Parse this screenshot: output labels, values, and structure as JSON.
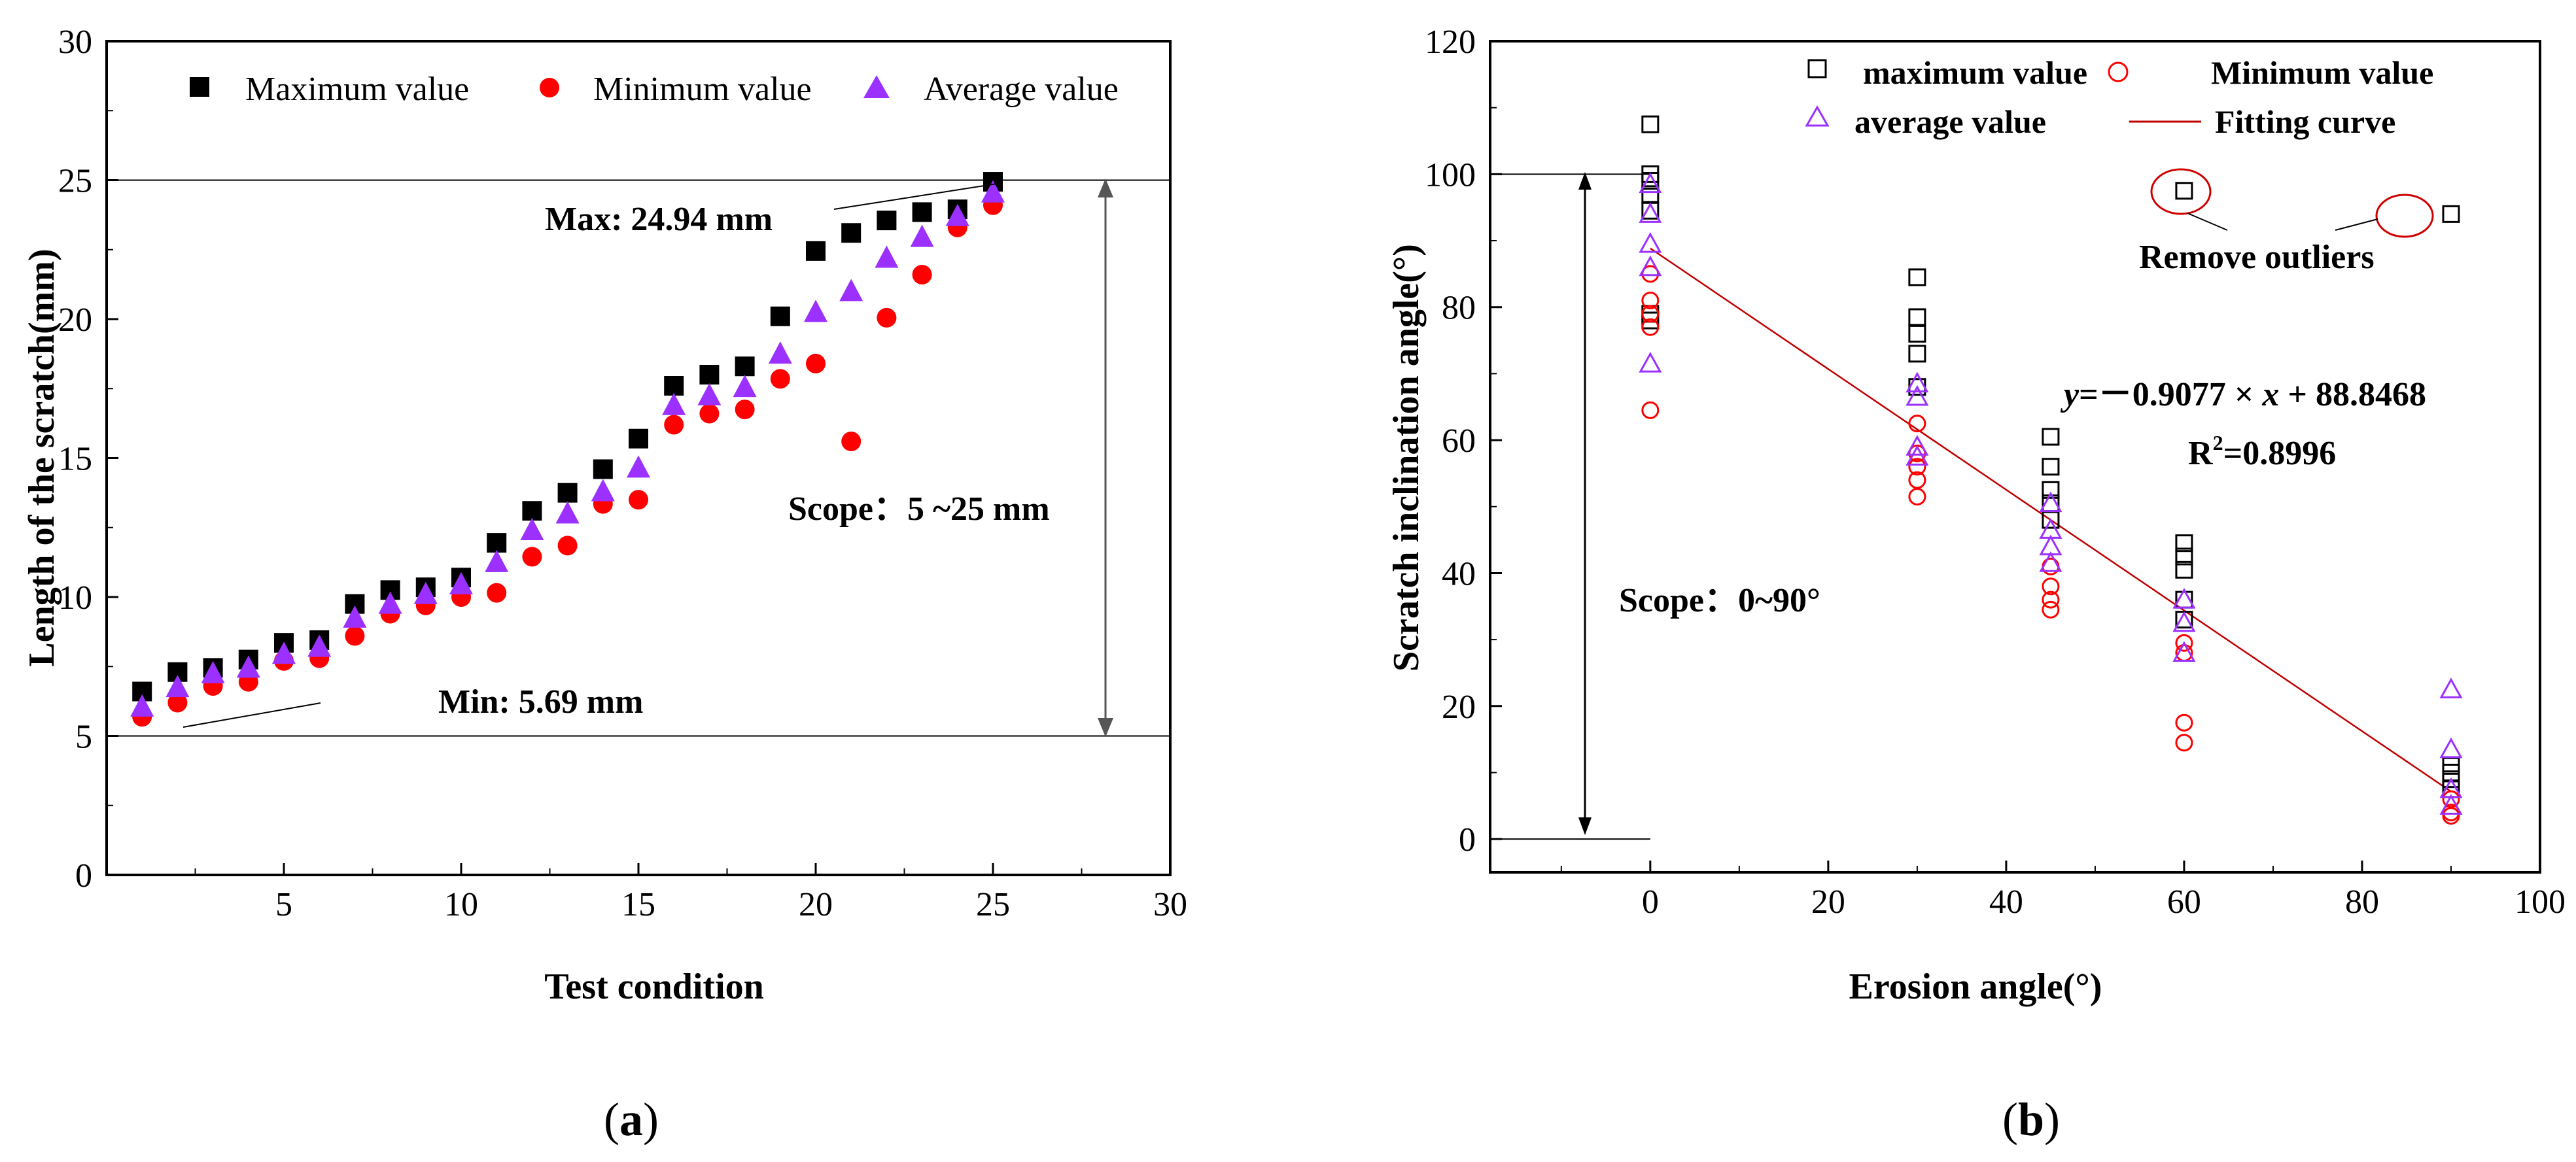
{
  "chart_data": [
    {
      "id": "a",
      "type": "scatter",
      "caption_letter": "a",
      "xlabel": "Test condition",
      "ylabel": "Length of the scratch(mm)",
      "xlim": [
        0,
        30
      ],
      "ylim": [
        0,
        30
      ],
      "xticks": [
        5,
        10,
        15,
        20,
        25,
        30
      ],
      "yticks": [
        0,
        5,
        10,
        15,
        20,
        25,
        30
      ],
      "x": [
        1,
        2,
        3,
        4,
        5,
        6,
        7,
        8,
        9,
        10,
        11,
        12,
        13,
        14,
        15,
        16,
        17,
        18,
        19,
        20,
        21,
        22,
        23,
        24,
        25
      ],
      "series": [
        {
          "name": "Maximum value",
          "marker": "square",
          "color": "#000000",
          "values": [
            6.6,
            7.3,
            7.45,
            7.75,
            8.35,
            8.45,
            9.75,
            10.25,
            10.35,
            10.7,
            11.95,
            13.1,
            13.75,
            14.6,
            15.7,
            17.6,
            18.0,
            18.3,
            20.1,
            22.45,
            23.1,
            23.55,
            23.85,
            23.95,
            24.94
          ]
        },
        {
          "name": "Minimum value",
          "marker": "circle",
          "color": "#ff0000",
          "values": [
            5.69,
            6.2,
            6.8,
            6.95,
            7.7,
            7.8,
            8.6,
            9.4,
            9.7,
            10.0,
            10.15,
            11.45,
            11.85,
            13.35,
            13.5,
            16.2,
            16.6,
            16.75,
            17.85,
            18.4,
            15.6,
            20.05,
            21.6,
            23.3,
            24.1
          ]
        },
        {
          "name": "Average value",
          "marker": "triangle",
          "color": "#9b30ff",
          "values": [
            6.05,
            6.75,
            7.25,
            7.45,
            7.95,
            8.2,
            9.25,
            9.75,
            10.1,
            10.45,
            11.25,
            12.4,
            13.0,
            13.8,
            14.65,
            16.9,
            17.25,
            17.55,
            18.75,
            20.25,
            21.0,
            22.2,
            22.95,
            23.7,
            24.55
          ]
        }
      ],
      "reference_lines": [
        25,
        5
      ],
      "annotations": {
        "max": "Max: 24.94 mm",
        "min": "Min: 5.69 mm",
        "scope": "Scope：5 ~25 mm"
      }
    },
    {
      "id": "b",
      "type": "scatter",
      "caption_letter": "b",
      "xlabel": "Erosion angle(°)",
      "ylabel": "Scratch inclination angle(°)",
      "xlim": [
        -18,
        100
      ],
      "ylim": [
        -5,
        120
      ],
      "xticks": [
        0,
        20,
        40,
        60,
        80,
        100
      ],
      "yticks": [
        0,
        20,
        40,
        60,
        80,
        100,
        120
      ],
      "series": [
        {
          "name": "maximum value",
          "marker": "open-square",
          "color": "#000000",
          "points": [
            [
              0,
              107.5
            ],
            [
              0,
              100
            ],
            [
              0,
              99
            ],
            [
              0,
              97
            ],
            [
              0,
              94.5
            ],
            [
              0,
              79
            ],
            [
              0,
              78
            ],
            [
              30,
              84.5
            ],
            [
              30,
              78.5
            ],
            [
              30,
              76
            ],
            [
              30,
              73
            ],
            [
              30,
              68
            ],
            [
              45,
              60.5
            ],
            [
              45,
              56
            ],
            [
              45,
              52.5
            ],
            [
              45,
              50.5
            ],
            [
              45,
              48
            ],
            [
              60,
              44.5
            ],
            [
              60,
              42.5
            ],
            [
              60,
              40.5
            ],
            [
              60,
              36
            ],
            [
              60,
              33
            ],
            [
              90,
              11
            ],
            [
              90,
              10
            ],
            [
              90,
              9
            ],
            [
              90,
              7.5
            ],
            [
              60,
              97.5
            ],
            [
              90,
              94
            ]
          ]
        },
        {
          "name": "Minimum value",
          "marker": "open-circle",
          "color": "#ff0000",
          "points": [
            [
              0,
              85
            ],
            [
              0,
              81
            ],
            [
              0,
              79
            ],
            [
              0,
              77
            ],
            [
              0,
              64.5
            ],
            [
              30,
              62.5
            ],
            [
              30,
              58
            ],
            [
              30,
              56
            ],
            [
              30,
              54
            ],
            [
              30,
              51.5
            ],
            [
              45,
              41
            ],
            [
              45,
              38
            ],
            [
              45,
              36
            ],
            [
              45,
              34.5
            ],
            [
              60,
              29.5
            ],
            [
              60,
              28
            ],
            [
              60,
              17.5
            ],
            [
              60,
              14.5
            ],
            [
              90,
              6
            ],
            [
              90,
              4
            ],
            [
              90,
              3.5
            ]
          ]
        },
        {
          "name": "average value",
          "marker": "open-triangle",
          "color": "#9b30ff",
          "points": [
            [
              0,
              98.5
            ],
            [
              0,
              94
            ],
            [
              0,
              89.5
            ],
            [
              0,
              86
            ],
            [
              0,
              71.5
            ],
            [
              30,
              68.5
            ],
            [
              30,
              66.5
            ],
            [
              30,
              59
            ],
            [
              30,
              57.5
            ],
            [
              45,
              50.5
            ],
            [
              45,
              46.5
            ],
            [
              45,
              44
            ],
            [
              45,
              41.5
            ],
            [
              60,
              36
            ],
            [
              60,
              32.5
            ],
            [
              60,
              28
            ],
            [
              90,
              22.5
            ],
            [
              90,
              13.5
            ],
            [
              90,
              7.5
            ],
            [
              90,
              5
            ]
          ]
        }
      ],
      "fit": {
        "name": "Fitting curve",
        "color": "#c00000",
        "slope": -0.9077,
        "intercept": 88.8468,
        "x_range": [
          0,
          90
        ]
      },
      "equation": {
        "y_var": "y",
        "rest": "=－0.9077 × ",
        "x_var": "x",
        "tail": " + 88.8468"
      },
      "r2": {
        "base": "R",
        "sup": "2",
        "rest": "=0.8996"
      },
      "outliers_label": "Remove outliers",
      "scope": "Scope：0~90°",
      "reference_line": 100
    }
  ]
}
